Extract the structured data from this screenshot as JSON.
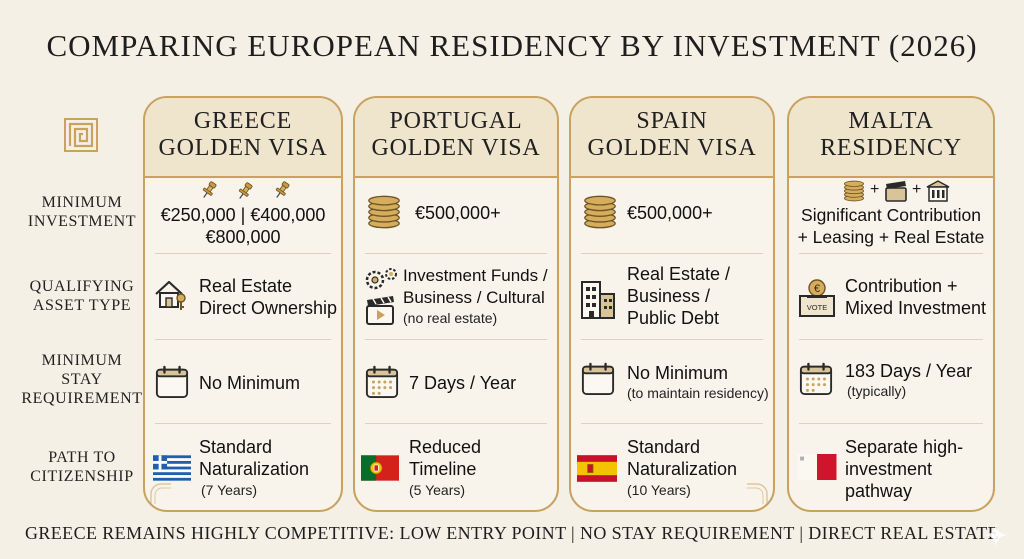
{
  "title": "COMPARING EUROPEAN RESIDENCY BY INVESTMENT (2026)",
  "row_labels": {
    "investment": [
      "MINIMUM",
      "INVESTMENT"
    ],
    "asset": [
      "QUALIFYING",
      "ASSET TYPE"
    ],
    "stay": [
      "MINIMUM",
      "STAY",
      "REQUIREMENT"
    ],
    "citizenship": [
      "PATH TO",
      "CITIZENSHIP"
    ]
  },
  "greece": {
    "title": [
      "GREECE",
      "GOLDEN VISA"
    ],
    "investment": [
      "€250,000 | €400,000",
      "€800,000"
    ],
    "asset": [
      "Real Estate",
      "Direct Ownership"
    ],
    "stay": "No Minimum",
    "citizenship": [
      "Standard",
      "Naturalization"
    ],
    "citizenship_note": "(7 Years)"
  },
  "portugal": {
    "title": [
      "PORTUGAL",
      "GOLDEN VISA"
    ],
    "investment": "€500,000+",
    "asset": [
      "Investment Funds /",
      "Business / Cultural"
    ],
    "asset_note": "(no real estate)",
    "stay": "7 Days / Year",
    "citizenship": [
      "Reduced",
      "Timeline"
    ],
    "citizenship_note": "(5 Years)"
  },
  "spain": {
    "title": [
      "SPAIN",
      "GOLDEN VISA"
    ],
    "investment": "€500,000+",
    "asset": [
      "Real Estate /",
      "Business /",
      "Public Debt"
    ],
    "stay": "No Minimum",
    "stay_note": "(to maintain residency)",
    "citizenship": [
      "Standard",
      "Naturalization"
    ],
    "citizenship_note": "(10 Years)"
  },
  "malta": {
    "title": [
      "MALTA",
      "RESIDENCY"
    ],
    "investment": [
      "Significant Contribution",
      "+ Leasing + Real Estate"
    ],
    "asset": [
      "Contribution +",
      "Mixed Investment"
    ],
    "asset_icon_label": "VOTE",
    "stay": "183 Days / Year",
    "stay_note": "(typically)",
    "citizenship": [
      "Separate high-",
      "investment",
      "pathway"
    ]
  },
  "footer": "GREECE REMAINS HIGHLY COMPETITIVE: LOW ENTRY POINT | NO STAY REQUIREMENT | DIRECT REAL ESTATE",
  "icons": {
    "header_emblem": "greek-key-icon",
    "investment_greece": "pin-icon",
    "investment_other": "coin-stack-icon",
    "asset_greece": "house-key-icon",
    "asset_portugal": "gears-film-icon",
    "asset_spain": "building-icon",
    "asset_malta": "ballot-box-icon",
    "stay": "calendar-icon",
    "flags": [
      "greece-flag-icon",
      "portugal-flag-icon",
      "spain-flag-icon",
      "malta-flag-icon"
    ]
  },
  "colors": {
    "background": "#f5f0e6",
    "gold": "#c9a25f",
    "card_header": "#efe4cc",
    "greece_blue": "#1f5fae",
    "portugal_green": "#0b6b2a",
    "portugal_red": "#d2221b",
    "spain_red": "#c8102e",
    "spain_yellow": "#f3c300",
    "malta_red": "#cf142b"
  }
}
